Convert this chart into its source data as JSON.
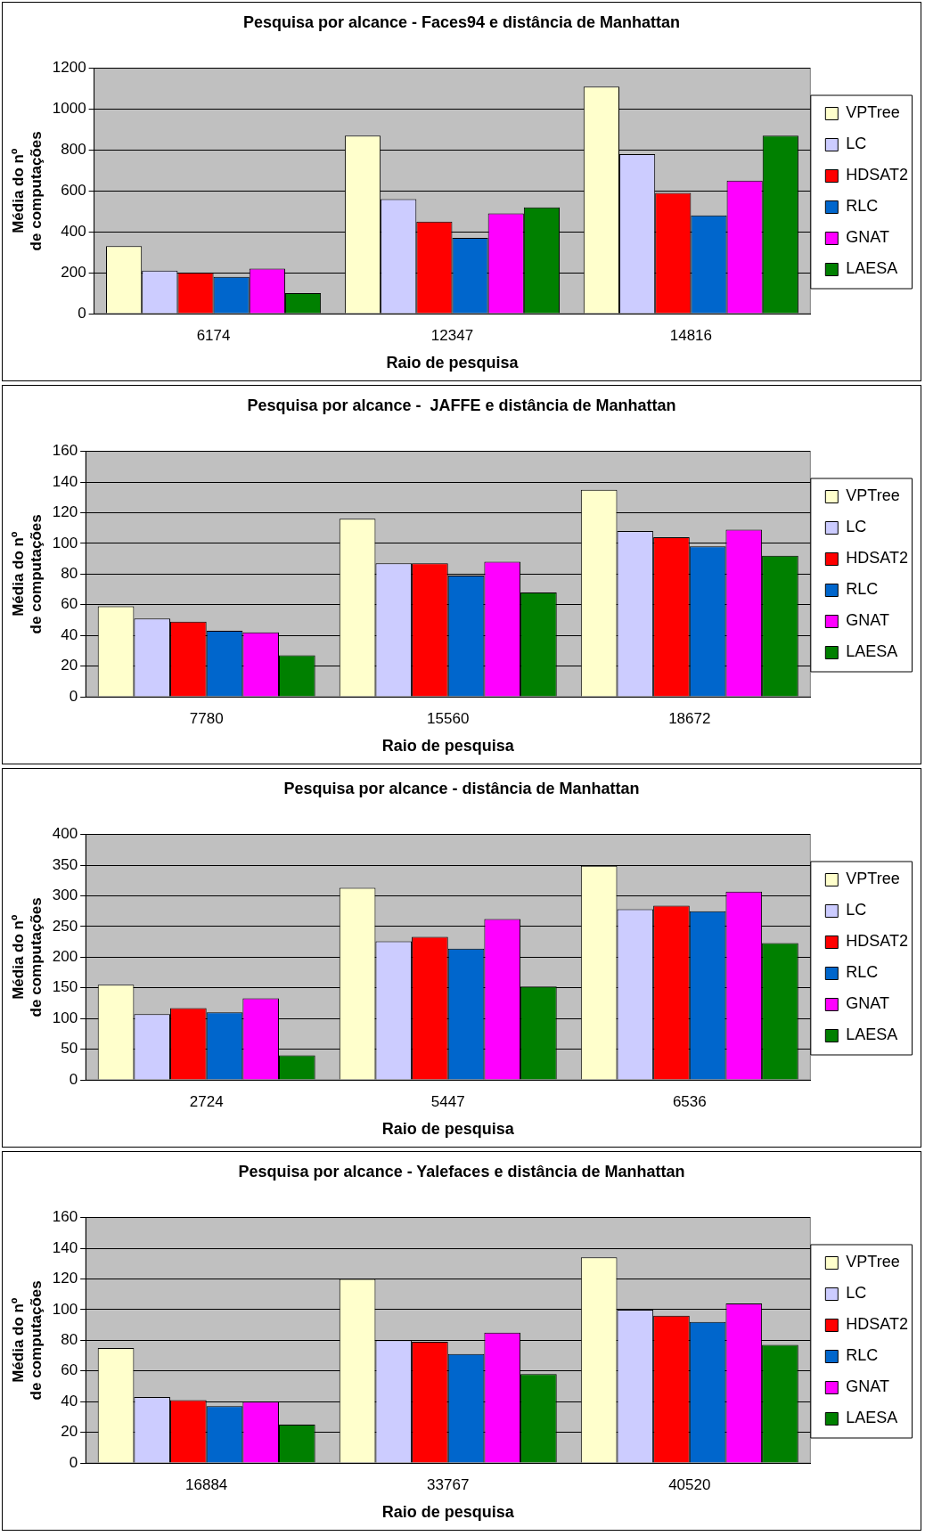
{
  "chart_data": [
    {
      "type": "bar",
      "title": "Pesquisa por alcance - Faces94 e distância de Manhattan",
      "xlabel": "Raio de pesquisa",
      "ylabel": "Média do nº de computações",
      "categories": [
        "6174",
        "12347",
        "14816"
      ],
      "ylim": [
        0,
        1200
      ],
      "yticks": [
        0,
        200,
        400,
        600,
        800,
        1000,
        1200
      ],
      "grid": "y",
      "legend": "right",
      "series": [
        {
          "name": "VPTree",
          "color": "#ffffcc",
          "values": [
            330,
            870,
            1110
          ]
        },
        {
          "name": "LC",
          "color": "#ccccff",
          "values": [
            210,
            560,
            780
          ]
        },
        {
          "name": "HDSAT2",
          "color": "#ff0000",
          "values": [
            200,
            450,
            590
          ]
        },
        {
          "name": "RLC",
          "color": "#0066cc",
          "values": [
            180,
            370,
            480
          ]
        },
        {
          "name": "GNAT",
          "color": "#ff00ff",
          "values": [
            220,
            490,
            650
          ]
        },
        {
          "name": "LAESA",
          "color": "#008000",
          "values": [
            100,
            520,
            870
          ]
        }
      ]
    },
    {
      "type": "bar",
      "title": "Pesquisa por alcance -  JAFFE e distância de Manhattan",
      "xlabel": "Raio de pesquisa",
      "ylabel": "Média do nº de computações",
      "categories": [
        "7780",
        "15560",
        "18672"
      ],
      "ylim": [
        0,
        160
      ],
      "yticks": [
        0,
        20,
        40,
        60,
        80,
        100,
        120,
        140,
        160
      ],
      "grid": "y",
      "legend": "right",
      "series": [
        {
          "name": "VPTree",
          "color": "#ffffcc",
          "values": [
            59,
            116,
            135
          ]
        },
        {
          "name": "LC",
          "color": "#ccccff",
          "values": [
            51,
            87,
            108
          ]
        },
        {
          "name": "HDSAT2",
          "color": "#ff0000",
          "values": [
            49,
            87,
            104
          ]
        },
        {
          "name": "RLC",
          "color": "#0066cc",
          "values": [
            43,
            79,
            98
          ]
        },
        {
          "name": "GNAT",
          "color": "#ff00ff",
          "values": [
            42,
            88,
            109
          ]
        },
        {
          "name": "LAESA",
          "color": "#008000",
          "values": [
            27,
            68,
            92
          ]
        }
      ]
    },
    {
      "type": "bar",
      "title": "Pesquisa por alcance - distância de Manhattan",
      "xlabel": "Raio de pesquisa",
      "ylabel": "Média do nº de computações",
      "categories": [
        "2724",
        "5447",
        "6536"
      ],
      "ylim": [
        0,
        400
      ],
      "yticks": [
        0,
        50,
        100,
        150,
        200,
        250,
        300,
        350,
        400
      ],
      "grid": "y",
      "legend": "right",
      "series": [
        {
          "name": "VPTree",
          "color": "#ffffcc",
          "values": [
            155,
            313,
            349
          ]
        },
        {
          "name": "LC",
          "color": "#ccccff",
          "values": [
            107,
            226,
            278
          ]
        },
        {
          "name": "HDSAT2",
          "color": "#ff0000",
          "values": [
            117,
            233,
            284
          ]
        },
        {
          "name": "RLC",
          "color": "#0066cc",
          "values": [
            110,
            214,
            275
          ]
        },
        {
          "name": "GNAT",
          "color": "#ff00ff",
          "values": [
            133,
            262,
            307
          ]
        },
        {
          "name": "LAESA",
          "color": "#008000",
          "values": [
            40,
            152,
            223
          ]
        }
      ]
    },
    {
      "type": "bar",
      "title": "Pesquisa por alcance - Yalefaces e distância de Manhattan",
      "xlabel": "Raio de pesquisa",
      "ylabel": "Média do nº de computações",
      "categories": [
        "16884",
        "33767",
        "40520"
      ],
      "ylim": [
        0,
        160
      ],
      "yticks": [
        0,
        20,
        40,
        60,
        80,
        100,
        120,
        140,
        160
      ],
      "grid": "y",
      "legend": "right",
      "series": [
        {
          "name": "VPTree",
          "color": "#ffffcc",
          "values": [
            75,
            120,
            134
          ]
        },
        {
          "name": "LC",
          "color": "#ccccff",
          "values": [
            43,
            80,
            100
          ]
        },
        {
          "name": "HDSAT2",
          "color": "#ff0000",
          "values": [
            41,
            79,
            96
          ]
        },
        {
          "name": "RLC",
          "color": "#0066cc",
          "values": [
            37,
            71,
            92
          ]
        },
        {
          "name": "GNAT",
          "color": "#ff00ff",
          "values": [
            40,
            85,
            104
          ]
        },
        {
          "name": "LAESA",
          "color": "#008000",
          "values": [
            25,
            58,
            77
          ]
        }
      ]
    }
  ]
}
